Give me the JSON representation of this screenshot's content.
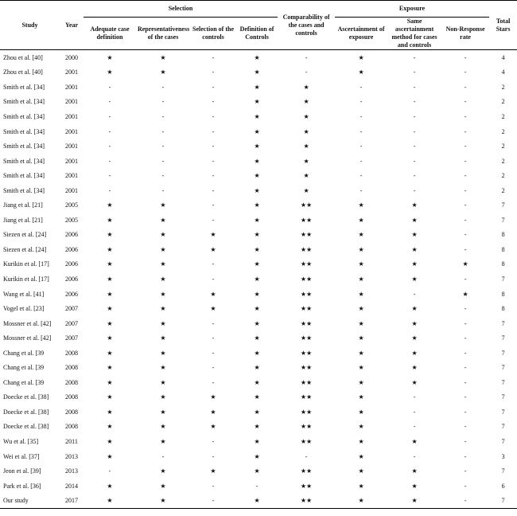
{
  "table": {
    "header": {
      "study": "Study",
      "year": "Year",
      "selection": "Selection",
      "comparability": "Comparability of the cases and controls",
      "exposure": "Exposure",
      "total": "Total Stars",
      "selection_columns": [
        "Adequate case definition",
        "Representativeness of the cases",
        "Selection of the controls",
        "Definition of Controls"
      ],
      "exposure_columns": [
        "Ascertainment of exposure",
        "Same ascertainment method for cases and controls",
        "Non-Response rate"
      ]
    },
    "rows": [
      [
        "Zhou et al. [40]",
        "2000",
        "★",
        "★",
        "-",
        "★",
        "-",
        "★",
        "-",
        "-",
        "4"
      ],
      [
        "Zhou et al. [40]",
        "2001",
        "★",
        "★",
        "-",
        "★",
        "-",
        "★",
        "-",
        "-",
        "4"
      ],
      [
        "Smith et al. [34]",
        "2001",
        "-",
        "-",
        "-",
        "★",
        "★",
        "-",
        "-",
        "-",
        "2"
      ],
      [
        "Smith et al. [34]",
        "2001",
        "-",
        "-",
        "-",
        "★",
        "★",
        "-",
        "-",
        "-",
        "2"
      ],
      [
        "Smith et al. [34]",
        "2001",
        "-",
        "-",
        "-",
        "★",
        "★",
        "-",
        "-",
        "-",
        "2"
      ],
      [
        "Smith et al. [34]",
        "2001",
        "-",
        "-",
        "-",
        "★",
        "★",
        "-",
        "-",
        "-",
        "2"
      ],
      [
        "Smith et al. [34]",
        "2001",
        "-",
        "-",
        "-",
        "★",
        "★",
        "-",
        "-",
        "-",
        "2"
      ],
      [
        "Smith et al. [34]",
        "2001",
        "-",
        "-",
        "-",
        "★",
        "★",
        "-",
        "-",
        "-",
        "2"
      ],
      [
        "Smith et al. [34]",
        "2001",
        "-",
        "-",
        "-",
        "★",
        "★",
        "-",
        "-",
        "-",
        "2"
      ],
      [
        "Smith et al. [34]",
        "2001",
        "-",
        "-",
        "-",
        "★",
        "★",
        "-",
        "-",
        "-",
        "2"
      ],
      [
        "Jiang et al. [21]",
        "2005",
        "★",
        "★",
        "-",
        "★",
        "★★",
        "★",
        "★",
        "-",
        "7"
      ],
      [
        "Jiang et al. [21]",
        "2005",
        "★",
        "★",
        "-",
        "★",
        "★★",
        "★",
        "★",
        "-",
        "7"
      ],
      [
        "Siezen et al. [24]",
        "2006",
        "★",
        "★",
        "★",
        "★",
        "★★",
        "★",
        "★",
        "-",
        "8"
      ],
      [
        "Siezen et al. [24]",
        "2006",
        "★",
        "★",
        "★",
        "★",
        "★★",
        "★",
        "★",
        "-",
        "8"
      ],
      [
        "Kurikin et al. [17]",
        "2006",
        "★",
        "★",
        "-",
        "★",
        "★★",
        "★",
        "★",
        "★",
        "8"
      ],
      [
        "Kurikin et al. [17]",
        "2006",
        "★",
        "★",
        "-",
        "★",
        "★★",
        "★",
        "★",
        "-",
        "7"
      ],
      [
        "Wang et al. [41]",
        "2006",
        "★",
        "★",
        "★",
        "★",
        "★★",
        "★",
        "-",
        "★",
        "8"
      ],
      [
        "Vogel et al. [23]",
        "2007",
        "★",
        "★",
        "★",
        "★",
        "★★",
        "★",
        "★",
        "-",
        "8"
      ],
      [
        "Mossner et al. [42]",
        "2007",
        "★",
        "★",
        "-",
        "★",
        "★★",
        "★",
        "★",
        "-",
        "7"
      ],
      [
        "Mossner et al. [42]",
        "2007",
        "★",
        "★",
        "-",
        "★",
        "★★",
        "★",
        "★",
        "-",
        "7"
      ],
      [
        "Chang et al. [39",
        "2008",
        "★",
        "★",
        "-",
        "★",
        "★★",
        "★",
        "★",
        "-",
        "7"
      ],
      [
        "Chang et al. [39",
        "2008",
        "★",
        "★",
        "-",
        "★",
        "★★",
        "★",
        "★",
        "-",
        "7"
      ],
      [
        "Chang et al. [39",
        "2008",
        "★",
        "★",
        "-",
        "★",
        "★★",
        "★",
        "★",
        "-",
        "7"
      ],
      [
        "Doecke et al. [38]",
        "2008",
        "★",
        "★",
        "★",
        "★",
        "★★",
        "★",
        "-",
        "-",
        "7"
      ],
      [
        "Doecke et al. [38]",
        "2008",
        "★",
        "★",
        "★",
        "★",
        "★★",
        "★",
        "-",
        "-",
        "7"
      ],
      [
        "Doecke et al. [38]",
        "2008",
        "★",
        "★",
        "★",
        "★",
        "★★",
        "★",
        "-",
        "-",
        "7"
      ],
      [
        "Wu et al. [35]",
        "2011",
        "★",
        "★",
        "-",
        "★",
        "★★",
        "★",
        "★",
        "-",
        "7"
      ],
      [
        "Wei et al. [37]",
        "2013",
        "★",
        "-",
        "-",
        "★",
        "-",
        "★",
        "-",
        "-",
        "3"
      ],
      [
        "Jeon et al. [39]",
        "2013",
        "-",
        "★",
        "★",
        "★",
        "★★",
        "★",
        "★",
        "-",
        "7"
      ],
      [
        "Park et al. [36]",
        "2014",
        "★",
        "★",
        "-",
        "-",
        "★★",
        "★",
        "★",
        "-",
        "6"
      ],
      [
        "Our study",
        "2017",
        "★",
        "★",
        "-",
        "★",
        "★★",
        "★",
        "★",
        "-",
        "7"
      ]
    ]
  }
}
